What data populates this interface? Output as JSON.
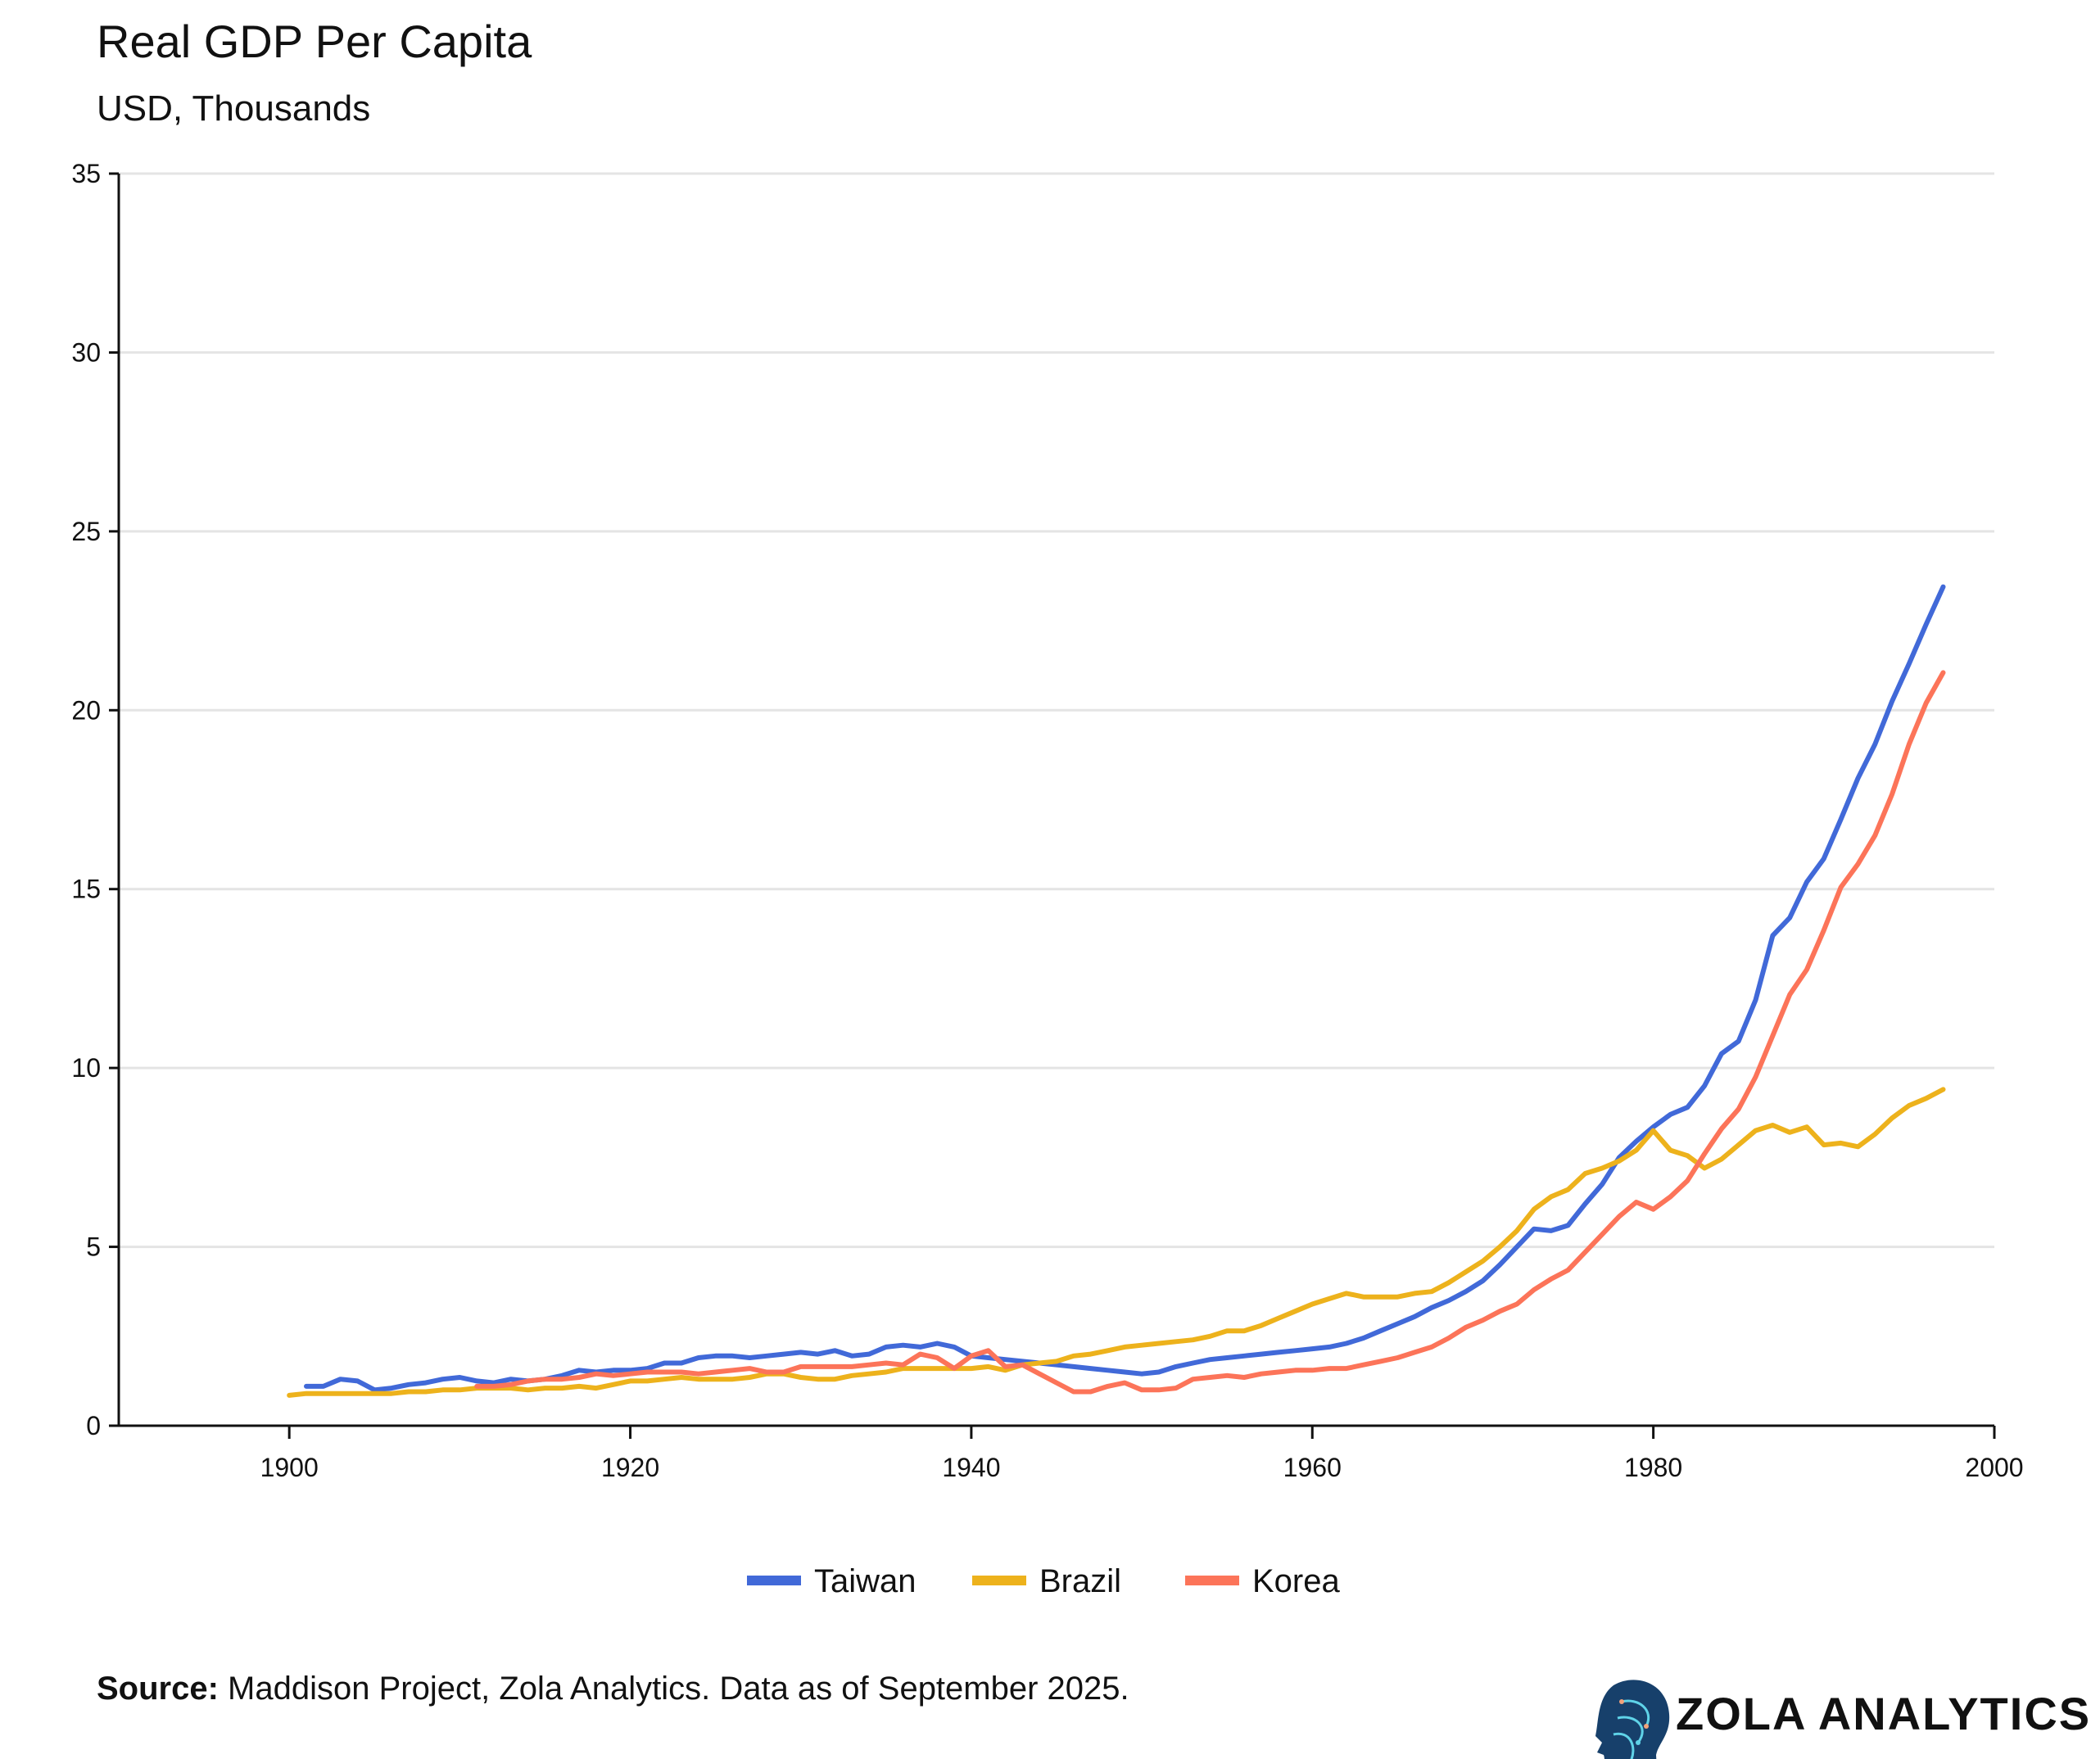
{
  "title": "Real GDP Per Capita",
  "subtitle": "USD, Thousands",
  "source_label": "Source:",
  "source_text": " Maddison Project, Zola Analytics. Data as of September 2025.",
  "logo_text": "ZOLA ANALYTICS",
  "chart_data": {
    "type": "line",
    "title": "Real GDP Per Capita",
    "subtitle": "USD, Thousands",
    "xlabel": "",
    "ylabel": "",
    "xlim": [
      1890,
      2000
    ],
    "ylim": [
      0,
      35
    ],
    "xticks": [
      1900,
      1920,
      1940,
      1960,
      1980,
      2000
    ],
    "yticks": [
      0,
      5,
      10,
      15,
      20,
      25,
      30,
      35
    ],
    "grid": "horizontal",
    "legend_position": "bottom-center",
    "series": [
      {
        "name": "Taiwan",
        "color": "#4169D8",
        "start_year": 1901,
        "values": [
          1.1,
          1.1,
          1.3,
          1.25,
          1.0,
          1.05,
          1.15,
          1.2,
          1.3,
          1.35,
          1.25,
          1.2,
          1.3,
          1.25,
          1.3,
          1.4,
          1.55,
          1.5,
          1.55,
          1.55,
          1.6,
          1.75,
          1.75,
          1.9,
          1.95,
          1.95,
          1.9,
          1.95,
          2.0,
          2.05,
          2.0,
          2.1,
          1.95,
          2.0,
          2.2,
          2.25,
          2.2,
          2.3,
          2.2,
          1.95,
          1.9,
          1.85,
          1.8,
          1.75,
          1.7,
          1.65,
          1.6,
          1.55,
          1.5,
          1.45,
          1.5,
          1.65,
          1.75,
          1.85,
          1.9,
          1.95,
          2.0,
          2.05,
          2.1,
          2.15,
          2.2,
          2.3,
          2.45,
          2.65,
          2.85,
          3.05,
          3.3,
          3.5,
          3.75,
          4.05,
          4.5,
          5.0,
          5.5,
          5.45,
          5.6,
          6.2,
          6.75,
          7.5,
          7.95,
          8.35,
          8.7,
          8.9,
          9.5,
          10.4,
          10.75,
          11.9,
          13.7,
          14.2,
          15.2,
          15.85,
          16.95,
          18.1,
          19.05,
          20.25,
          21.3,
          22.4,
          23.45
        ]
      },
      {
        "name": "Brazil",
        "color": "#EDB21C",
        "start_year": 1900,
        "values": [
          0.85,
          0.9,
          0.9,
          0.9,
          0.9,
          0.9,
          0.9,
          0.95,
          0.95,
          1.0,
          1.0,
          1.05,
          1.05,
          1.05,
          1.0,
          1.05,
          1.05,
          1.1,
          1.05,
          1.15,
          1.25,
          1.25,
          1.3,
          1.35,
          1.3,
          1.3,
          1.3,
          1.35,
          1.45,
          1.45,
          1.35,
          1.3,
          1.3,
          1.4,
          1.45,
          1.5,
          1.6,
          1.6,
          1.6,
          1.6,
          1.6,
          1.65,
          1.55,
          1.7,
          1.75,
          1.8,
          1.95,
          2.0,
          2.1,
          2.2,
          2.25,
          2.3,
          2.35,
          2.4,
          2.5,
          2.65,
          2.65,
          2.8,
          3.0,
          3.2,
          3.4,
          3.55,
          3.7,
          3.6,
          3.6,
          3.6,
          3.7,
          3.75,
          4.0,
          4.3,
          4.6,
          5.0,
          5.45,
          6.05,
          6.4,
          6.6,
          7.05,
          7.2,
          7.4,
          7.7,
          8.25,
          7.7,
          7.55,
          7.2,
          7.45,
          7.85,
          8.25,
          8.4,
          8.2,
          8.35,
          7.85,
          7.9,
          7.8,
          8.15,
          8.6,
          8.95,
          9.15,
          9.4
        ]
      },
      {
        "name": "Korea",
        "color": "#FC7459",
        "start_year": 1911,
        "values": [
          1.1,
          1.1,
          1.15,
          1.25,
          1.3,
          1.3,
          1.35,
          1.45,
          1.4,
          1.45,
          1.5,
          1.5,
          1.5,
          1.45,
          1.5,
          1.55,
          1.6,
          1.5,
          1.5,
          1.65,
          1.65,
          1.65,
          1.65,
          1.7,
          1.75,
          1.7,
          2.0,
          1.9,
          1.6,
          1.95,
          2.1,
          1.65,
          1.7,
          1.45,
          1.2,
          0.95,
          0.95,
          1.1,
          1.2,
          1.0,
          1.0,
          1.05,
          1.3,
          1.35,
          1.4,
          1.35,
          1.45,
          1.5,
          1.55,
          1.55,
          1.6,
          1.6,
          1.7,
          1.8,
          1.9,
          2.05,
          2.2,
          2.45,
          2.75,
          2.95,
          3.2,
          3.4,
          3.8,
          4.1,
          4.35,
          4.85,
          5.35,
          5.85,
          6.25,
          6.05,
          6.4,
          6.85,
          7.6,
          8.3,
          8.85,
          9.75,
          10.9,
          12.05,
          12.75,
          13.85,
          15.05,
          15.7,
          16.5,
          17.65,
          19.05,
          20.2,
          21.05
        ]
      }
    ]
  }
}
